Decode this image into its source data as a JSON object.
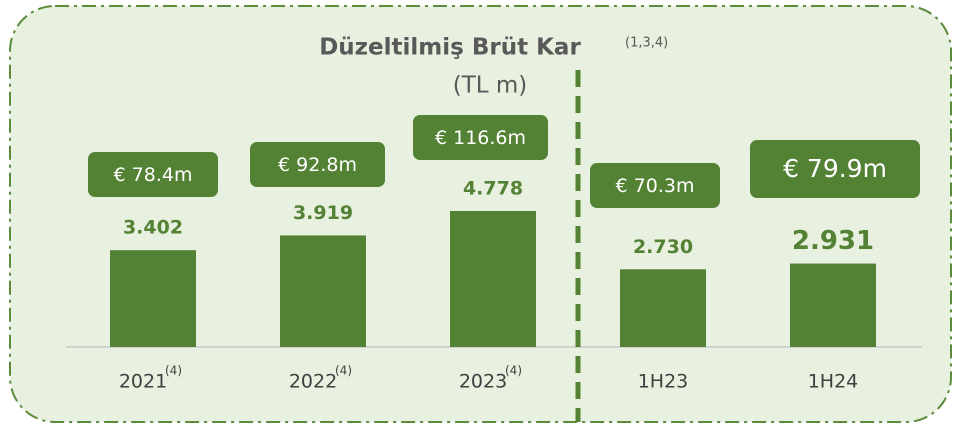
{
  "chart_data": {
    "type": "bar",
    "title": "Düzeltilmiş Brüt Kar",
    "title_note": "(1,3,4)",
    "subtitle": "(TL m)",
    "categories": [
      "2021",
      "2022",
      "2023",
      "1H23",
      "1H24"
    ],
    "category_notes": [
      "(4)",
      "(4)",
      "(4)",
      null,
      null
    ],
    "values": [
      3402,
      3919,
      4778,
      2730,
      2931
    ],
    "value_labels": [
      "3.402",
      "3.919",
      "4.778",
      "2.730",
      "2.931"
    ],
    "euro_labels": [
      "€ 78.4m",
      "€ 92.8m",
      "€ 116.6m",
      "€ 70.3m",
      "€ 79.9m"
    ],
    "color": "#548235"
  }
}
